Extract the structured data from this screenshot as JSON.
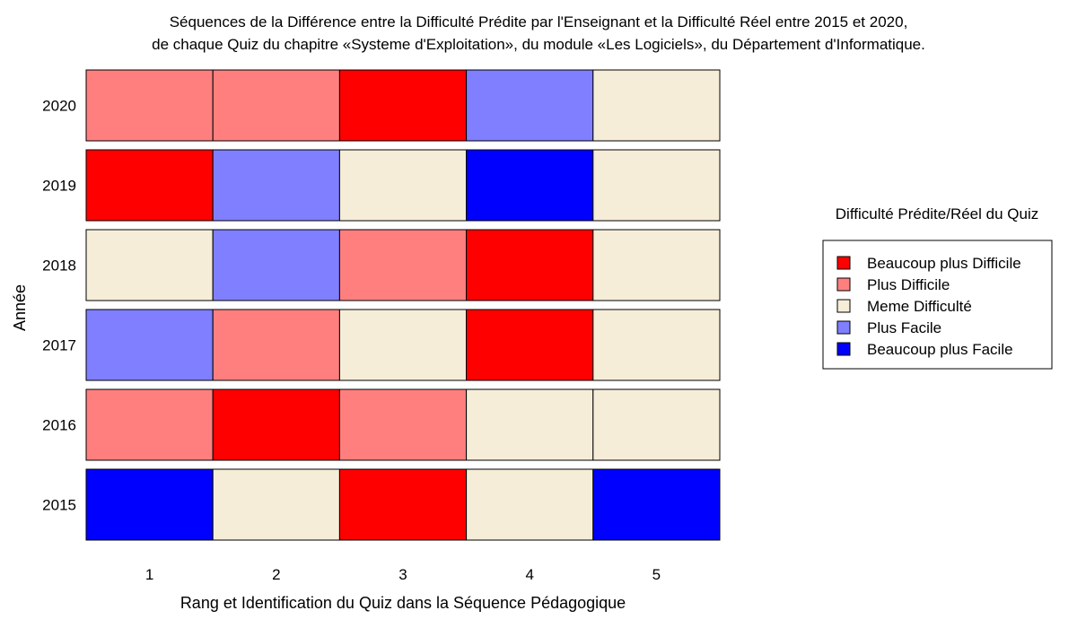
{
  "chart_data": {
    "type": "heatmap",
    "title_lines": [
      "Séquences de la Différence entre la Difficulté Prédite par l'Enseignant et la Difficulté Réel entre 2015 et 2020,",
      "de chaque Quiz du chapitre «Systeme d'Exploitation», du module «Les Logiciels», du Département d'Informatique."
    ],
    "xlabel": "Rang et Identification du Quiz dans la Séquence Pédagogique",
    "ylabel": "Année",
    "x": [
      1,
      2,
      3,
      4,
      5
    ],
    "x_tick_labels": [
      "1",
      "2",
      "3",
      "4",
      "5"
    ],
    "years": [
      "2020",
      "2019",
      "2018",
      "2017",
      "2016",
      "2015"
    ],
    "rows": [
      {
        "year": "2020",
        "values": [
          "Plus Difficile",
          "Plus Difficile",
          "Beaucoup plus Difficile",
          "Plus Facile",
          "Meme Difficulté"
        ]
      },
      {
        "year": "2019",
        "values": [
          "Beaucoup plus Difficile",
          "Plus Facile",
          "Meme Difficulté",
          "Beaucoup plus Facile",
          "Meme Difficulté"
        ]
      },
      {
        "year": "2018",
        "values": [
          "Meme Difficulté",
          "Plus Facile",
          "Plus Difficile",
          "Beaucoup plus Difficile",
          "Meme Difficulté"
        ]
      },
      {
        "year": "2017",
        "values": [
          "Plus Facile",
          "Plus Difficile",
          "Meme Difficulté",
          "Beaucoup plus Difficile",
          "Meme Difficulté"
        ]
      },
      {
        "year": "2016",
        "values": [
          "Plus Difficile",
          "Beaucoup plus Difficile",
          "Plus Difficile",
          "Meme Difficulté",
          "Meme Difficulté"
        ]
      },
      {
        "year": "2015",
        "values": [
          "Beaucoup plus Facile",
          "Meme Difficulté",
          "Beaucoup plus Difficile",
          "Meme Difficulté",
          "Beaucoup plus Facile"
        ]
      }
    ],
    "legend": {
      "title": "Difficulté Prédite/Réel du Quiz",
      "position": "right",
      "entries": [
        {
          "label": "Beaucoup plus Difficile",
          "color": "#ff0000"
        },
        {
          "label": "Plus Difficile",
          "color": "#ff7f7f"
        },
        {
          "label": "Meme Difficulté",
          "color": "#f5edd8"
        },
        {
          "label": "Plus Facile",
          "color": "#7f7fff"
        },
        {
          "label": "Beaucoup plus Facile",
          "color": "#0000ff"
        }
      ]
    },
    "grid": false
  }
}
